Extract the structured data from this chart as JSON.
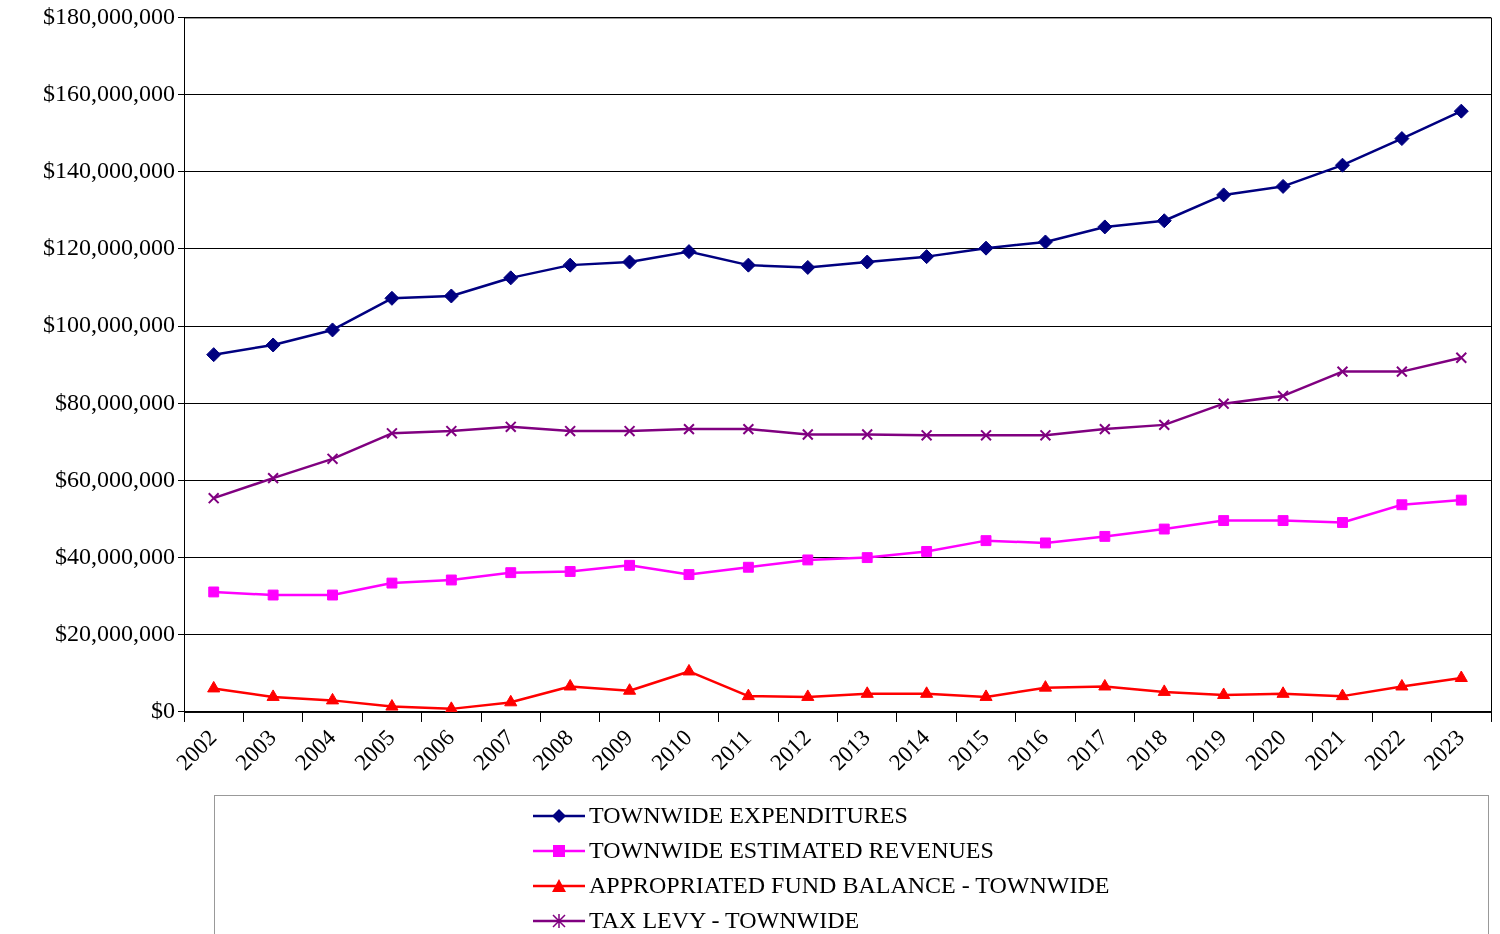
{
  "chart_data": {
    "type": "line",
    "categories": [
      "2002",
      "2003",
      "2004",
      "2005",
      "2006",
      "2007",
      "2008",
      "2009",
      "2010",
      "2011",
      "2012",
      "2013",
      "2014",
      "2015",
      "2016",
      "2017",
      "2018",
      "2019",
      "2020",
      "2021",
      "2022",
      "2023"
    ],
    "series": [
      {
        "name": "TOWNWIDE EXPENDITURES",
        "color": "#000080",
        "marker": "diamond",
        "values": [
          92600000,
          95100000,
          99000000,
          107200000,
          107800000,
          112500000,
          115800000,
          116600000,
          119300000,
          115800000,
          115200000,
          116600000,
          118000000,
          120200000,
          121800000,
          125700000,
          127300000,
          134000000,
          136200000,
          141700000,
          148600000,
          155700000
        ]
      },
      {
        "name": "TOWNWIDE ESTIMATED  REVENUES",
        "color": "#ff00ff",
        "marker": "square",
        "values": [
          31100000,
          30300000,
          30300000,
          33400000,
          34200000,
          36100000,
          36400000,
          38000000,
          35600000,
          37500000,
          39400000,
          40000000,
          41600000,
          44400000,
          43800000,
          45500000,
          47400000,
          49600000,
          49600000,
          49100000,
          53700000,
          54900000
        ]
      },
      {
        "name": "APPROPRIATED FUND BALANCE - TOWNWIDE",
        "color": "#ff0000",
        "marker": "triangle",
        "values": [
          6100000,
          3900000,
          3000000,
          1400000,
          800000,
          2500000,
          6600000,
          5500000,
          10500000,
          4100000,
          3900000,
          4700000,
          4700000,
          3900000,
          6300000,
          6600000,
          5200000,
          4400000,
          4700000,
          4100000,
          6600000,
          8800000
        ]
      },
      {
        "name": "TAX LEVY - TOWNWIDE",
        "color": "#800080",
        "marker": "cross",
        "values": [
          55400000,
          60600000,
          65600000,
          72200000,
          72800000,
          73900000,
          72800000,
          72800000,
          73300000,
          73300000,
          71900000,
          71900000,
          71700000,
          71700000,
          71700000,
          73300000,
          74400000,
          79900000,
          81900000,
          88200000,
          88200000,
          91800000
        ]
      }
    ],
    "ylim": [
      0,
      180000000
    ],
    "yticks": [
      {
        "value": 0,
        "label": "$0"
      },
      {
        "value": 20000000,
        "label": "$20,000,000"
      },
      {
        "value": 40000000,
        "label": "$40,000,000"
      },
      {
        "value": 60000000,
        "label": "$60,000,000"
      },
      {
        "value": 80000000,
        "label": "$80,000,000"
      },
      {
        "value": 100000000,
        "label": "$100,000,000"
      },
      {
        "value": 120000000,
        "label": "$120,000,000"
      },
      {
        "value": 140000000,
        "label": "$140,000,000"
      },
      {
        "value": 160000000,
        "label": "$160,000,000"
      },
      {
        "value": 180000000,
        "label": "$180,000,000"
      }
    ],
    "grid": "y",
    "legend": "bottom",
    "line_style": "solid"
  }
}
